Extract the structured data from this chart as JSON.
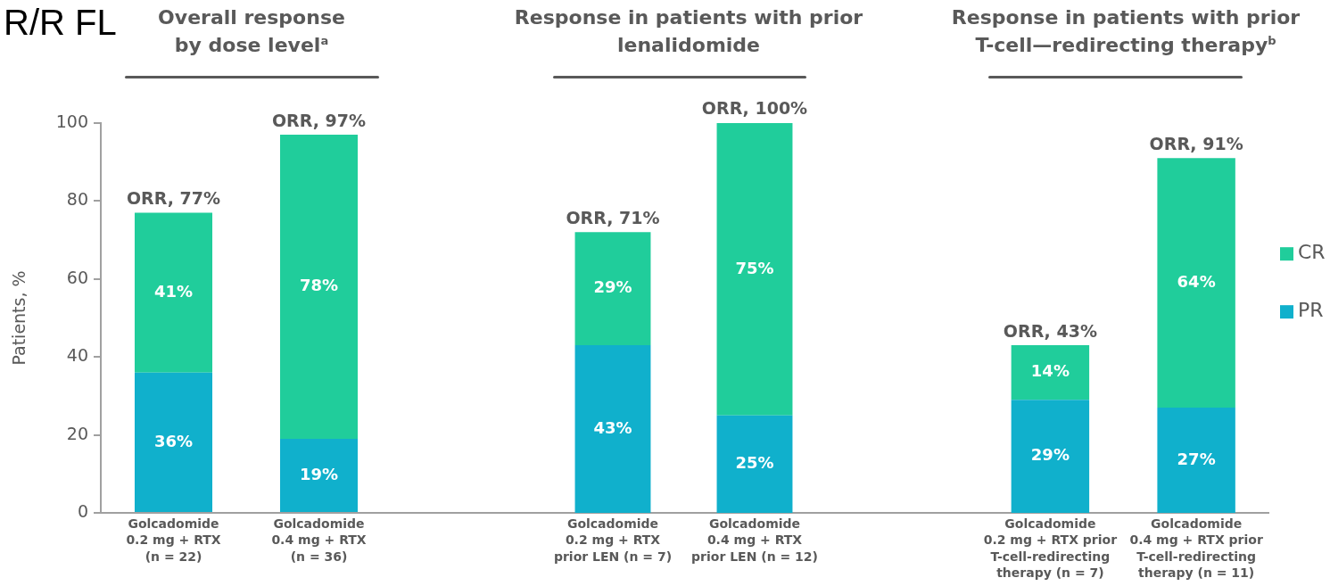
{
  "chart_data": [
    {
      "type": "bar",
      "title": "Overall response by dose level$^{a}$",
      "ylabel": "Patients, %",
      "annotations": [
        "R/R FL"
      ],
      "categories": [
        "Golcadomide\n0.2 mg + RTX\n(n = 22)",
        "Golcadomide\n0.4 mg + RTX\n(n = 36)"
      ],
      "stacked": true,
      "series": [
        {
          "color": "#10b0cc",
          "values": [
            36,
            19
          ],
          "value_labels": [
            "36%",
            "19%"
          ]
        },
        {
          "color": "#20cd9b",
          "values": [
            41,
            78
          ],
          "value_labels": [
            "41%",
            "78%"
          ]
        }
      ],
      "totals": [
        "ORR, 77%",
        "ORR, 97%"
      ],
      "ylim": [
        0,
        100
      ],
      "yticks": [
        0,
        20,
        40,
        60,
        80,
        100
      ]
    },
    {
      "type": "bar",
      "title": "Response in patients with prior lenalidomide",
      "categories": [
        "Golcadomide\n0.2 mg + RTX\nprior LEN (n = 7)",
        "Golcadomide\n0.4 mg + RTX\nprior LEN (n = 12)"
      ],
      "stacked": true,
      "series": [
        {
          "color": "#10b0cc",
          "values": [
            43,
            25
          ],
          "value_labels": [
            "43%",
            "25%"
          ]
        },
        {
          "color": "#20cd9b",
          "values": [
            29,
            75
          ],
          "value_labels": [
            "29%",
            "75%"
          ]
        }
      ],
      "totals": [
        "ORR, 71%",
        "ORR, 100%"
      ],
      "ylim": [
        0,
        100
      ],
      "tick_labels": "x"
    },
    {
      "type": "bar",
      "title": "Response in patients with prior T-cell—redirecting therapy$^{b}$",
      "categories": [
        "Golcadomide\n0.2 mg + RTX prior\nT-cell-redirecting\ntherapy (n = 7)",
        "Golcadomide\n0.4 mg + RTX prior\nT-cell-redirecting\ntherapy (n = 11)"
      ],
      "stacked": true,
      "series": [
        {
          "name": "PR",
          "color": "#10b0cc",
          "values": [
            29,
            27
          ],
          "value_labels": [
            "29%",
            "27%"
          ]
        },
        {
          "name": "CR",
          "color": "#20cd9b",
          "values": [
            14,
            64
          ],
          "value_labels": [
            "14%",
            "64%"
          ]
        }
      ],
      "totals": [
        "ORR, 43%",
        "ORR, 91%"
      ],
      "ylim": [
        0,
        100
      ],
      "tick_labels": "x",
      "legend": "right"
    }
  ]
}
